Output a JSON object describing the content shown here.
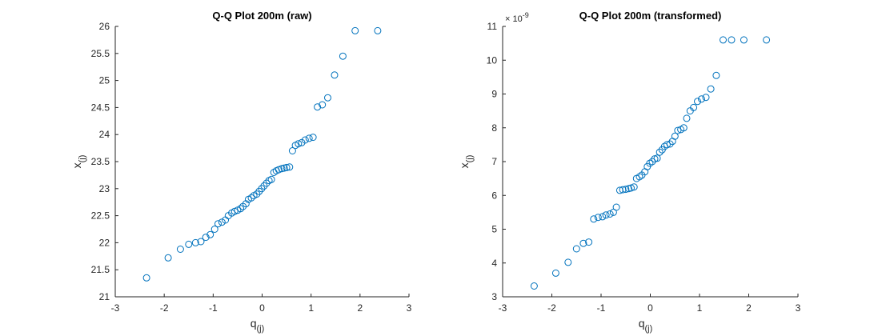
{
  "chart_data": [
    {
      "type": "scatter",
      "title": "Q-Q Plot 200m (raw)",
      "xlabel": "q(j)",
      "ylabel": "x(j)",
      "xlim": [
        -3,
        3
      ],
      "ylim": [
        21,
        26
      ],
      "xticks": [
        -3,
        -2,
        -1,
        0,
        1,
        2,
        3
      ],
      "yticks": [
        21,
        21.5,
        22,
        22.5,
        23,
        23.5,
        24,
        24.5,
        25,
        25.5,
        26
      ],
      "ytick_labels": [
        "21",
        "21.5",
        "22",
        "22.5",
        "23",
        "23.5",
        "24",
        "24.5",
        "25",
        "25.5",
        "26"
      ],
      "exponent_label": "",
      "marker_color": "#0072BD",
      "grid": false,
      "x": [
        -2.36,
        -1.92,
        -1.67,
        -1.5,
        -1.36,
        -1.25,
        -1.15,
        -1.06,
        -0.97,
        -0.9,
        -0.82,
        -0.75,
        -0.69,
        -0.62,
        -0.56,
        -0.5,
        -0.44,
        -0.39,
        -0.33,
        -0.28,
        -0.22,
        -0.17,
        -0.11,
        -0.06,
        -0.01,
        0.04,
        0.09,
        0.14,
        0.19,
        0.24,
        0.29,
        0.34,
        0.4,
        0.45,
        0.5,
        0.56,
        0.62,
        0.68,
        0.74,
        0.81,
        0.88,
        0.96,
        1.04,
        1.13,
        1.23,
        1.34,
        1.48,
        1.65,
        1.9,
        2.36
      ],
      "y": [
        21.35,
        21.72,
        21.88,
        21.97,
        22.0,
        22.02,
        22.1,
        22.15,
        22.25,
        22.35,
        22.38,
        22.42,
        22.5,
        22.55,
        22.58,
        22.6,
        22.63,
        22.67,
        22.72,
        22.8,
        22.83,
        22.87,
        22.9,
        22.95,
        23.0,
        23.05,
        23.1,
        23.15,
        23.17,
        23.3,
        23.33,
        23.35,
        23.37,
        23.38,
        23.39,
        23.4,
        23.7,
        23.8,
        23.83,
        23.85,
        23.9,
        23.93,
        23.95,
        24.51,
        24.55,
        24.68,
        25.1,
        25.45,
        25.92,
        25.92
      ]
    },
    {
      "type": "scatter",
      "title": "Q-Q Plot 200m (transformed)",
      "xlabel": "q(j)",
      "ylabel": "x(j)",
      "xlim": [
        -3,
        3
      ],
      "ylim": [
        3,
        11
      ],
      "xticks": [
        -3,
        -2,
        -1,
        0,
        1,
        2,
        3
      ],
      "yticks": [
        3,
        4,
        5,
        6,
        7,
        8,
        9,
        10,
        11
      ],
      "ytick_labels": [
        "3",
        "4",
        "5",
        "6",
        "7",
        "8",
        "9",
        "10",
        "11"
      ],
      "exponent_label": "× 10",
      "exponent_power": "-9",
      "marker_color": "#0072BD",
      "grid": false,
      "x": [
        -2.36,
        -1.92,
        -1.67,
        -1.5,
        -1.36,
        -1.25,
        -1.15,
        -1.06,
        -0.97,
        -0.9,
        -0.82,
        -0.75,
        -0.69,
        -0.62,
        -0.56,
        -0.5,
        -0.44,
        -0.39,
        -0.33,
        -0.28,
        -0.22,
        -0.17,
        -0.11,
        -0.06,
        -0.01,
        0.04,
        0.09,
        0.14,
        0.19,
        0.24,
        0.29,
        0.34,
        0.4,
        0.45,
        0.5,
        0.56,
        0.62,
        0.68,
        0.74,
        0.81,
        0.88,
        0.96,
        1.04,
        1.13,
        1.23,
        1.34,
        1.48,
        1.65,
        1.9,
        2.36
      ],
      "y": [
        3.32,
        3.7,
        4.02,
        4.42,
        4.58,
        4.62,
        5.3,
        5.35,
        5.37,
        5.42,
        5.45,
        5.5,
        5.65,
        6.15,
        6.17,
        6.18,
        6.2,
        6.22,
        6.25,
        6.5,
        6.55,
        6.6,
        6.7,
        6.85,
        6.95,
        7.0,
        7.08,
        7.1,
        7.28,
        7.35,
        7.45,
        7.5,
        7.52,
        7.6,
        7.75,
        7.92,
        7.95,
        8.0,
        8.28,
        8.5,
        8.6,
        8.78,
        8.85,
        8.9,
        9.15,
        9.55,
        10.6,
        10.6,
        10.6,
        10.6
      ]
    }
  ]
}
